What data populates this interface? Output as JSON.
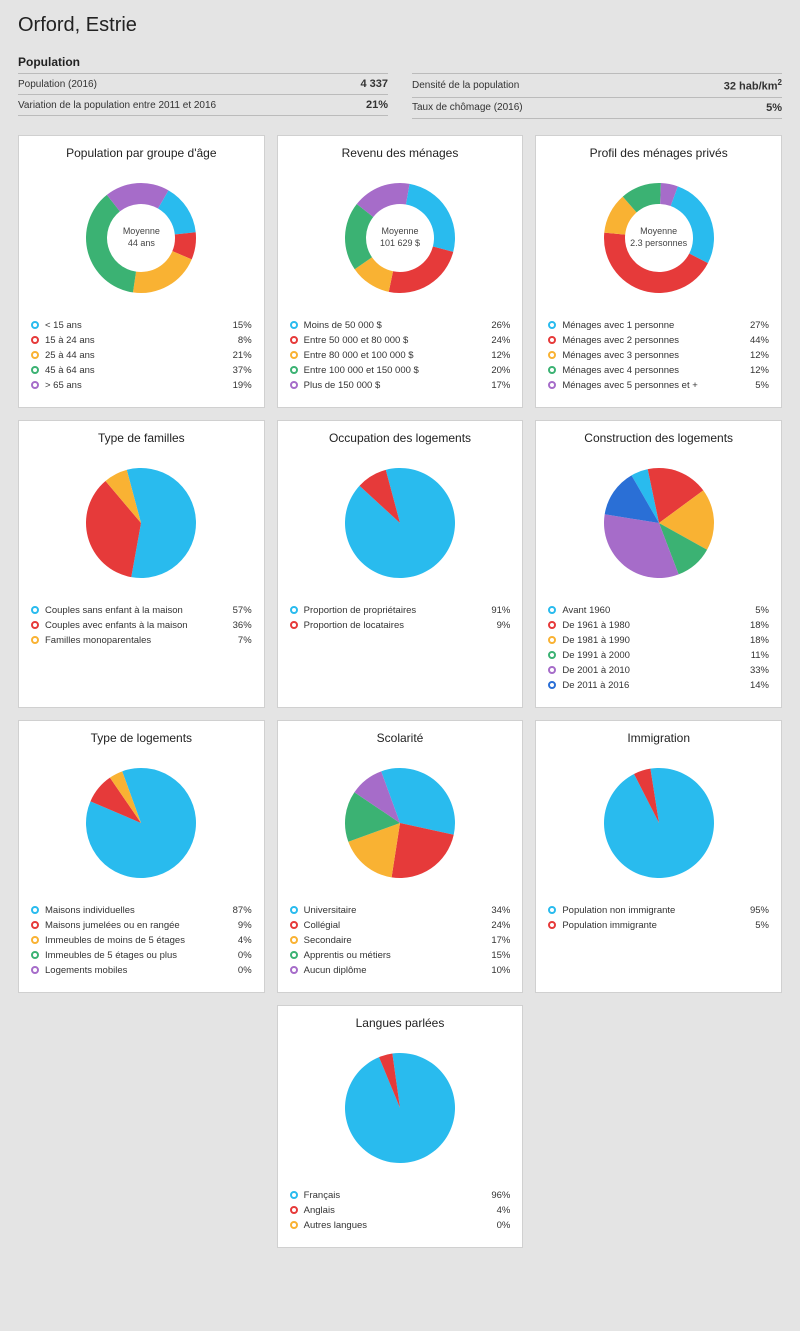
{
  "title": "Orford, Estrie",
  "section_label": "Population",
  "stats_left": [
    {
      "label": "Population (2016)",
      "value": "4 337"
    },
    {
      "label": "Variation de la population entre 2011 et 2016",
      "value": "21%"
    }
  ],
  "stats_right": [
    {
      "label": "Densité de la population",
      "value": "32 hab/km",
      "sup": "2"
    },
    {
      "label": "Taux de chômage (2016)",
      "value": "5%"
    }
  ],
  "palette": {
    "cyan": "#29bbee",
    "red": "#e63a3a",
    "orange": "#f9b233",
    "green": "#3bb273",
    "purple": "#a66cc9",
    "blue": "#2a6fd6"
  },
  "chart_style": {
    "card_bg": "#ffffff",
    "page_bg": "#e4e4e4",
    "border": "#d0d0d0",
    "title_fontsize": 12,
    "legend_fontsize": 9.5,
    "donut_outer_r": 55,
    "donut_inner_r": 34,
    "pie_r": 55
  },
  "cards": [
    {
      "id": "age",
      "title": "Population par groupe d'âge",
      "type": "donut",
      "center_label": "Moyenne",
      "center_value": "44 ans",
      "start_angle": 30,
      "items": [
        {
          "label": "< 15 ans",
          "value": 15,
          "color": "#29bbee"
        },
        {
          "label": "15 à 24 ans",
          "value": 8,
          "color": "#e63a3a"
        },
        {
          "label": "25 à 44 ans",
          "value": 21,
          "color": "#f9b233"
        },
        {
          "label": "45 à 64 ans",
          "value": 37,
          "color": "#3bb273"
        },
        {
          "label": "> 65 ans",
          "value": 19,
          "color": "#a66cc9"
        }
      ]
    },
    {
      "id": "income",
      "title": "Revenu des ménages",
      "type": "donut",
      "center_label": "Moyenne",
      "center_value": "101 629 $",
      "start_angle": 10,
      "items": [
        {
          "label": "Moins de 50 000 $",
          "value": 26,
          "color": "#29bbee"
        },
        {
          "label": "Entre 50 000 et 80 000 $",
          "value": 24,
          "color": "#e63a3a"
        },
        {
          "label": "Entre 80 000 et 100 000 $",
          "value": 12,
          "color": "#f9b233"
        },
        {
          "label": "Entre 100 000 et 150 000 $",
          "value": 20,
          "color": "#3bb273"
        },
        {
          "label": "Plus de 150 000 $",
          "value": 17,
          "color": "#a66cc9"
        }
      ]
    },
    {
      "id": "household",
      "title": "Profil des ménages privés",
      "type": "donut",
      "center_label": "Moyenne",
      "center_value": "2.3 personnes",
      "start_angle": 20,
      "items": [
        {
          "label": "Ménages avec 1 personne",
          "value": 27,
          "color": "#29bbee"
        },
        {
          "label": "Ménages avec 2 personnes",
          "value": 44,
          "color": "#e63a3a"
        },
        {
          "label": "Ménages avec 3 personnes",
          "value": 12,
          "color": "#f9b233"
        },
        {
          "label": "Ménages avec 4 personnes",
          "value": 12,
          "color": "#3bb273"
        },
        {
          "label": "Ménages avec 5 personnes et +",
          "value": 5,
          "color": "#a66cc9"
        }
      ]
    },
    {
      "id": "families",
      "title": "Type de familles",
      "type": "pie",
      "start_angle": -15,
      "items": [
        {
          "label": "Couples sans enfant à la maison",
          "value": 57,
          "color": "#29bbee"
        },
        {
          "label": "Couples avec enfants à la maison",
          "value": 36,
          "color": "#e63a3a"
        },
        {
          "label": "Familles monoparentales",
          "value": 7,
          "color": "#f9b233"
        }
      ]
    },
    {
      "id": "occupation",
      "title": "Occupation des logements",
      "type": "pie",
      "start_angle": -15,
      "items": [
        {
          "label": "Proportion de propriétaires",
          "value": 91,
          "color": "#29bbee"
        },
        {
          "label": "Proportion de locataires",
          "value": 9,
          "color": "#e63a3a"
        }
      ]
    },
    {
      "id": "construction",
      "title": "Construction des logements",
      "type": "pie",
      "start_angle": -30,
      "items": [
        {
          "label": "Avant 1960",
          "value": 5,
          "color": "#29bbee"
        },
        {
          "label": "De 1961 à 1980",
          "value": 18,
          "color": "#e63a3a"
        },
        {
          "label": "De 1981 à 1990",
          "value": 18,
          "color": "#f9b233"
        },
        {
          "label": "De 1991 à 2000",
          "value": 11,
          "color": "#3bb273"
        },
        {
          "label": "De 2001 à 2010",
          "value": 33,
          "color": "#a66cc9"
        },
        {
          "label": "De 2011 à 2016",
          "value": 14,
          "color": "#2a6fd6"
        }
      ]
    },
    {
      "id": "dwelling",
      "title": "Type de logements",
      "type": "pie",
      "start_angle": -20,
      "items": [
        {
          "label": "Maisons individuelles",
          "value": 87,
          "color": "#29bbee"
        },
        {
          "label": "Maisons jumelées ou en rangée",
          "value": 9,
          "color": "#e63a3a"
        },
        {
          "label": "Immeubles de moins de 5 étages",
          "value": 4,
          "color": "#f9b233"
        },
        {
          "label": "Immeubles de 5 étages ou plus",
          "value": 0,
          "color": "#3bb273"
        },
        {
          "label": "Logements mobiles",
          "value": 0,
          "color": "#a66cc9"
        }
      ]
    },
    {
      "id": "education",
      "title": "Scolarité",
      "type": "pie",
      "start_angle": -20,
      "items": [
        {
          "label": "Universitaire",
          "value": 34,
          "color": "#29bbee"
        },
        {
          "label": "Collégial",
          "value": 24,
          "color": "#e63a3a"
        },
        {
          "label": "Secondaire",
          "value": 17,
          "color": "#f9b233"
        },
        {
          "label": "Apprentis ou métiers",
          "value": 15,
          "color": "#3bb273"
        },
        {
          "label": "Aucun diplôme",
          "value": 10,
          "color": "#a66cc9"
        }
      ]
    },
    {
      "id": "immigration",
      "title": "Immigration",
      "type": "pie",
      "start_angle": -9,
      "items": [
        {
          "label": "Population non immigrante",
          "value": 95,
          "color": "#29bbee"
        },
        {
          "label": "Population immigrante",
          "value": 5,
          "color": "#e63a3a"
        }
      ]
    },
    {
      "id": "languages",
      "title": "Langues parlées",
      "type": "pie",
      "center_last": true,
      "start_angle": -8,
      "items": [
        {
          "label": "Français",
          "value": 96,
          "color": "#29bbee"
        },
        {
          "label": "Anglais",
          "value": 4,
          "color": "#e63a3a"
        },
        {
          "label": "Autres langues",
          "value": 0,
          "color": "#f9b233"
        }
      ]
    }
  ]
}
